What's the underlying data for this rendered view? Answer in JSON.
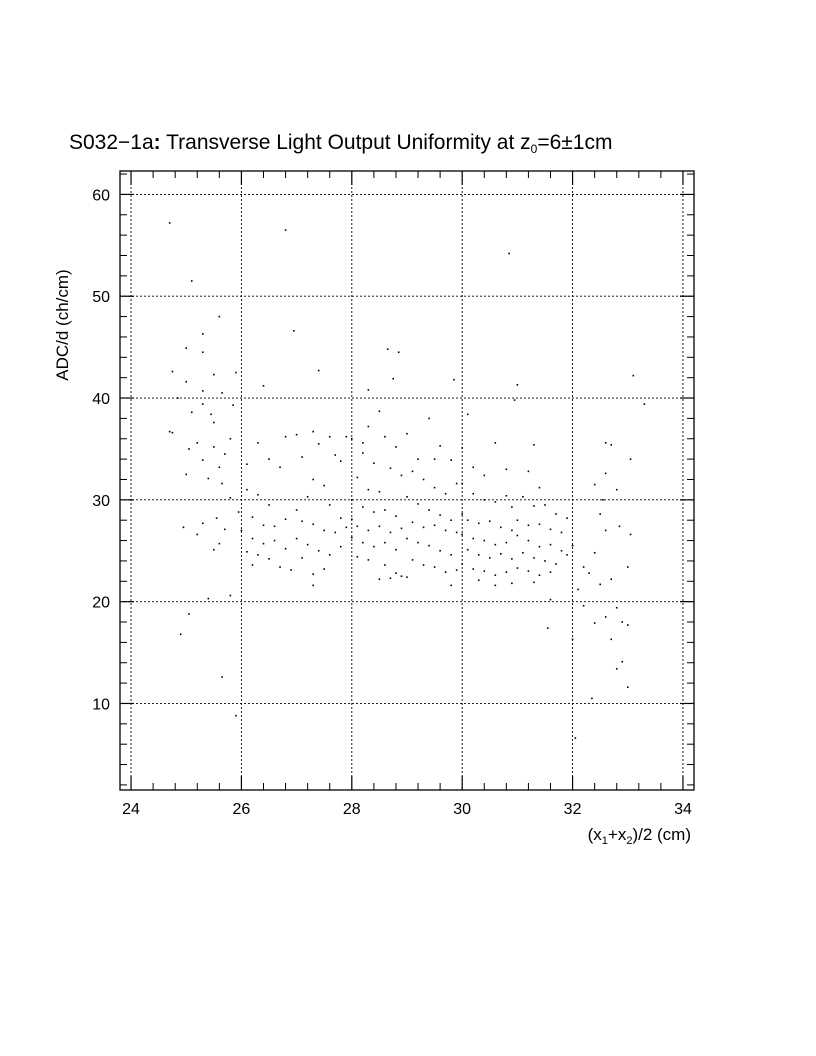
{
  "chart_data": {
    "type": "scatter",
    "title": {
      "main": "S032−1a",
      "colon": ":",
      "rest": " Transverse Light Output Uniformity at z",
      "sub": "0",
      "suffix": "=6±1cm"
    },
    "xlabel": {
      "p1": "(x",
      "s1": "1",
      "p2": "+x",
      "s2": "2",
      "p3": ")/2 (cm)"
    },
    "ylabel": "ADC/d (ch/cm)",
    "xlim": [
      23.8,
      34.2
    ],
    "ylim": [
      1.5,
      62.3
    ],
    "x_ticks": [
      "24",
      "26",
      "28",
      "30",
      "32",
      "34"
    ],
    "y_ticks": [
      "10",
      "20",
      "30",
      "40",
      "50",
      "60"
    ],
    "grid": true,
    "series": [
      {
        "points": [
          [
            24.7,
            57.2
          ],
          [
            25.1,
            51.5
          ],
          [
            25.6,
            48.0
          ],
          [
            25.3,
            46.3
          ],
          [
            25.0,
            44.9
          ],
          [
            25.3,
            44.5
          ],
          [
            24.75,
            42.6
          ],
          [
            25.0,
            41.6
          ],
          [
            25.5,
            42.3
          ],
          [
            25.9,
            42.5
          ],
          [
            25.3,
            40.7
          ],
          [
            25.65,
            40.5
          ],
          [
            24.85,
            40.0
          ],
          [
            25.3,
            39.4
          ],
          [
            25.1,
            38.6
          ],
          [
            25.45,
            38.4
          ],
          [
            25.85,
            39.3
          ],
          [
            25.5,
            37.6
          ],
          [
            24.7,
            36.7
          ],
          [
            24.75,
            36.6
          ],
          [
            25.2,
            35.6
          ],
          [
            25.5,
            35.2
          ],
          [
            25.8,
            36.0
          ],
          [
            25.05,
            35.0
          ],
          [
            25.3,
            33.9
          ],
          [
            25.6,
            33.2
          ],
          [
            25.7,
            34.5
          ],
          [
            25.0,
            32.5
          ],
          [
            25.4,
            32.1
          ],
          [
            25.65,
            31.6
          ],
          [
            25.8,
            30.2
          ],
          [
            25.95,
            28.8
          ],
          [
            25.55,
            28.2
          ],
          [
            25.3,
            27.7
          ],
          [
            25.7,
            27.1
          ],
          [
            24.95,
            27.3
          ],
          [
            25.2,
            26.6
          ],
          [
            25.6,
            25.7
          ],
          [
            25.5,
            25.1
          ],
          [
            25.4,
            20.3
          ],
          [
            25.8,
            20.6
          ],
          [
            25.05,
            18.8
          ],
          [
            24.9,
            16.8
          ],
          [
            25.65,
            12.6
          ],
          [
            25.9,
            8.8
          ],
          [
            26.1,
            33.5
          ],
          [
            26.3,
            35.6
          ],
          [
            26.5,
            34.0
          ],
          [
            26.7,
            33.2
          ],
          [
            26.1,
            31.0
          ],
          [
            26.3,
            30.5
          ],
          [
            26.5,
            29.5
          ],
          [
            26.2,
            28.3
          ],
          [
            26.4,
            27.5
          ],
          [
            26.6,
            27.4
          ],
          [
            26.8,
            28.1
          ],
          [
            26.0,
            27.0
          ],
          [
            26.2,
            26.2
          ],
          [
            26.4,
            25.7
          ],
          [
            26.6,
            26.0
          ],
          [
            26.8,
            25.2
          ],
          [
            26.3,
            24.6
          ],
          [
            26.5,
            24.2
          ],
          [
            26.1,
            24.9
          ],
          [
            26.7,
            23.4
          ],
          [
            26.9,
            23.1
          ],
          [
            26.2,
            23.6
          ],
          [
            26.4,
            41.2
          ],
          [
            26.8,
            36.2
          ],
          [
            27.0,
            36.4
          ],
          [
            27.1,
            34.2
          ],
          [
            27.3,
            36.7
          ],
          [
            27.4,
            35.5
          ],
          [
            27.6,
            36.2
          ],
          [
            27.7,
            34.4
          ],
          [
            27.8,
            33.8
          ],
          [
            27.3,
            32.0
          ],
          [
            27.5,
            31.4
          ],
          [
            27.2,
            30.3
          ],
          [
            27.0,
            29.0
          ],
          [
            27.6,
            29.5
          ],
          [
            27.8,
            28.2
          ],
          [
            27.1,
            27.9
          ],
          [
            27.3,
            27.6
          ],
          [
            27.5,
            27.0
          ],
          [
            27.7,
            26.8
          ],
          [
            27.9,
            27.3
          ],
          [
            27.0,
            26.2
          ],
          [
            27.2,
            25.6
          ],
          [
            27.4,
            25.0
          ],
          [
            27.6,
            24.6
          ],
          [
            27.8,
            25.4
          ],
          [
            27.1,
            24.3
          ],
          [
            27.3,
            22.7
          ],
          [
            27.5,
            23.2
          ],
          [
            27.3,
            21.6
          ],
          [
            26.8,
            56.5
          ],
          [
            26.95,
            46.6
          ],
          [
            27.4,
            42.7
          ],
          [
            27.9,
            36.2
          ],
          [
            28.0,
            36.0
          ],
          [
            28.2,
            35.6
          ],
          [
            28.3,
            37.2
          ],
          [
            28.5,
            38.7
          ],
          [
            28.6,
            36.2
          ],
          [
            28.8,
            35.2
          ],
          [
            28.2,
            34.6
          ],
          [
            28.4,
            33.6
          ],
          [
            28.7,
            33.1
          ],
          [
            28.9,
            32.4
          ],
          [
            28.1,
            32.2
          ],
          [
            28.3,
            31.0
          ],
          [
            28.5,
            30.8
          ],
          [
            28.0,
            30.0
          ],
          [
            28.2,
            29.3
          ],
          [
            28.4,
            28.8
          ],
          [
            28.6,
            29.0
          ],
          [
            28.8,
            28.4
          ],
          [
            28.0,
            28.1
          ],
          [
            28.1,
            27.4
          ],
          [
            28.3,
            27.0
          ],
          [
            28.5,
            27.4
          ],
          [
            28.7,
            26.8
          ],
          [
            28.9,
            27.2
          ],
          [
            28.0,
            26.3
          ],
          [
            28.2,
            25.8
          ],
          [
            28.4,
            25.4
          ],
          [
            28.6,
            25.8
          ],
          [
            28.8,
            25.1
          ],
          [
            28.1,
            24.4
          ],
          [
            28.3,
            24.1
          ],
          [
            28.6,
            23.6
          ],
          [
            28.8,
            22.8
          ],
          [
            28.5,
            22.2
          ],
          [
            28.7,
            22.3
          ],
          [
            28.9,
            22.5
          ],
          [
            28.65,
            44.8
          ],
          [
            28.85,
            44.5
          ],
          [
            28.75,
            41.9
          ],
          [
            28.3,
            40.8
          ],
          [
            29.0,
            36.5
          ],
          [
            29.2,
            34.0
          ],
          [
            29.4,
            38.0
          ],
          [
            29.6,
            35.3
          ],
          [
            29.8,
            33.9
          ],
          [
            29.1,
            32.8
          ],
          [
            29.3,
            32.0
          ],
          [
            29.5,
            31.2
          ],
          [
            29.7,
            30.6
          ],
          [
            29.9,
            31.6
          ],
          [
            29.0,
            30.3
          ],
          [
            29.2,
            29.6
          ],
          [
            29.4,
            29.0
          ],
          [
            29.6,
            28.5
          ],
          [
            29.8,
            28.0
          ],
          [
            29.1,
            27.8
          ],
          [
            29.3,
            27.3
          ],
          [
            29.5,
            27.5
          ],
          [
            29.7,
            27.0
          ],
          [
            29.9,
            26.8
          ],
          [
            29.0,
            26.2
          ],
          [
            29.2,
            25.8
          ],
          [
            29.4,
            25.5
          ],
          [
            29.6,
            25.0
          ],
          [
            29.8,
            24.6
          ],
          [
            29.1,
            24.1
          ],
          [
            29.3,
            23.6
          ],
          [
            29.5,
            23.4
          ],
          [
            29.7,
            22.9
          ],
          [
            29.9,
            23.1
          ],
          [
            29.0,
            22.4
          ],
          [
            29.8,
            21.6
          ],
          [
            29.85,
            41.8
          ],
          [
            29.5,
            34.0
          ],
          [
            30.0,
            35.1
          ],
          [
            30.1,
            38.4
          ],
          [
            30.2,
            33.2
          ],
          [
            30.4,
            32.4
          ],
          [
            30.6,
            35.6
          ],
          [
            30.8,
            33.0
          ],
          [
            30.0,
            31.6
          ],
          [
            30.2,
            30.6
          ],
          [
            30.4,
            30.0
          ],
          [
            30.6,
            29.8
          ],
          [
            30.8,
            30.4
          ],
          [
            30.9,
            29.3
          ],
          [
            30.0,
            28.6
          ],
          [
            30.1,
            28.0
          ],
          [
            30.3,
            27.7
          ],
          [
            30.5,
            27.9
          ],
          [
            30.7,
            27.3
          ],
          [
            30.9,
            27.0
          ],
          [
            30.0,
            26.6
          ],
          [
            30.2,
            26.2
          ],
          [
            30.4,
            26.0
          ],
          [
            30.6,
            25.6
          ],
          [
            30.8,
            25.8
          ],
          [
            30.1,
            25.1
          ],
          [
            30.3,
            24.6
          ],
          [
            30.5,
            24.3
          ],
          [
            30.7,
            24.7
          ],
          [
            30.9,
            24.2
          ],
          [
            30.0,
            23.7
          ],
          [
            30.2,
            23.2
          ],
          [
            30.4,
            23.0
          ],
          [
            30.6,
            22.6
          ],
          [
            30.8,
            22.9
          ],
          [
            30.3,
            22.1
          ],
          [
            30.6,
            21.6
          ],
          [
            30.9,
            21.8
          ],
          [
            30.85,
            54.2
          ],
          [
            30.95,
            39.8
          ],
          [
            31.0,
            41.3
          ],
          [
            31.3,
            35.4
          ],
          [
            31.2,
            32.8
          ],
          [
            31.4,
            31.2
          ],
          [
            31.1,
            30.3
          ],
          [
            31.3,
            29.4
          ],
          [
            31.5,
            29.5
          ],
          [
            31.7,
            28.6
          ],
          [
            31.9,
            28.2
          ],
          [
            31.0,
            28.0
          ],
          [
            31.2,
            27.5
          ],
          [
            31.4,
            27.6
          ],
          [
            31.6,
            27.1
          ],
          [
            31.8,
            26.8
          ],
          [
            31.0,
            26.5
          ],
          [
            31.2,
            26.0
          ],
          [
            31.4,
            25.4
          ],
          [
            31.6,
            25.6
          ],
          [
            31.8,
            25.0
          ],
          [
            31.1,
            24.8
          ],
          [
            31.3,
            24.3
          ],
          [
            31.5,
            24.0
          ],
          [
            31.7,
            23.7
          ],
          [
            31.9,
            24.6
          ],
          [
            31.0,
            23.3
          ],
          [
            31.2,
            23.0
          ],
          [
            31.4,
            22.6
          ],
          [
            31.6,
            22.9
          ],
          [
            31.3,
            21.9
          ],
          [
            31.6,
            20.2
          ],
          [
            31.55,
            17.4
          ],
          [
            32.0,
            25.5
          ],
          [
            32.2,
            23.4
          ],
          [
            32.4,
            24.8
          ],
          [
            32.6,
            27.0
          ],
          [
            32.5,
            28.6
          ],
          [
            32.55,
            30.0
          ],
          [
            32.4,
            31.5
          ],
          [
            32.6,
            35.6
          ],
          [
            32.7,
            35.4
          ],
          [
            32.8,
            31.0
          ],
          [
            32.6,
            32.6
          ],
          [
            32.3,
            22.8
          ],
          [
            32.5,
            21.7
          ],
          [
            32.7,
            22.2
          ],
          [
            32.1,
            21.2
          ],
          [
            32.2,
            19.6
          ],
          [
            32.4,
            17.9
          ],
          [
            32.6,
            18.5
          ],
          [
            32.7,
            16.3
          ],
          [
            32.9,
            18.0
          ],
          [
            33.0,
            17.7
          ],
          [
            32.8,
            19.4
          ],
          [
            32.9,
            14.1
          ],
          [
            32.8,
            13.4
          ],
          [
            33.0,
            11.6
          ],
          [
            32.35,
            10.5
          ],
          [
            32.05,
            6.6
          ],
          [
            32.0,
            16.3
          ],
          [
            33.1,
            42.2
          ],
          [
            33.05,
            34.0
          ],
          [
            33.05,
            26.6
          ],
          [
            33.0,
            23.4
          ],
          [
            33.3,
            39.4
          ],
          [
            32.85,
            27.4
          ]
        ]
      }
    ]
  }
}
